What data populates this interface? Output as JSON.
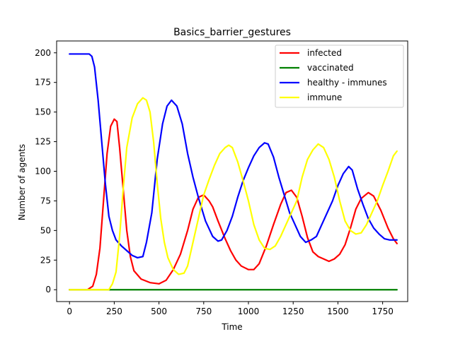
{
  "chart_data": {
    "type": "line",
    "title": "Basics_barrier_gestures",
    "xlabel": "Time",
    "ylabel": "Number of agents",
    "xlim": [
      -72,
      1890
    ],
    "ylim": [
      -10,
      210
    ],
    "xticks": [
      0,
      250,
      500,
      750,
      1000,
      1250,
      1500,
      1750
    ],
    "yticks": [
      0,
      25,
      50,
      75,
      100,
      125,
      150,
      175,
      200
    ],
    "legend_position": "top-right",
    "series": [
      {
        "name": "infected",
        "color": "#ff0000",
        "points": [
          [
            0,
            0
          ],
          [
            100,
            0
          ],
          [
            130,
            3
          ],
          [
            150,
            13
          ],
          [
            170,
            35
          ],
          [
            190,
            75
          ],
          [
            210,
            115
          ],
          [
            230,
            138
          ],
          [
            250,
            144
          ],
          [
            265,
            142
          ],
          [
            280,
            120
          ],
          [
            300,
            85
          ],
          [
            320,
            50
          ],
          [
            340,
            28
          ],
          [
            360,
            16
          ],
          [
            400,
            9
          ],
          [
            450,
            6
          ],
          [
            500,
            5
          ],
          [
            540,
            8
          ],
          [
            580,
            17
          ],
          [
            620,
            30
          ],
          [
            660,
            50
          ],
          [
            690,
            68
          ],
          [
            720,
            78
          ],
          [
            750,
            80
          ],
          [
            780,
            75
          ],
          [
            800,
            70
          ],
          [
            830,
            58
          ],
          [
            870,
            43
          ],
          [
            900,
            33
          ],
          [
            930,
            25
          ],
          [
            960,
            20
          ],
          [
            1000,
            17
          ],
          [
            1030,
            17
          ],
          [
            1060,
            22
          ],
          [
            1100,
            37
          ],
          [
            1140,
            55
          ],
          [
            1180,
            72
          ],
          [
            1210,
            82
          ],
          [
            1240,
            84
          ],
          [
            1270,
            78
          ],
          [
            1300,
            62
          ],
          [
            1330,
            44
          ],
          [
            1360,
            32
          ],
          [
            1390,
            28
          ],
          [
            1420,
            26
          ],
          [
            1450,
            24
          ],
          [
            1480,
            26
          ],
          [
            1510,
            30
          ],
          [
            1540,
            38
          ],
          [
            1570,
            52
          ],
          [
            1600,
            68
          ],
          [
            1630,
            77
          ],
          [
            1670,
            82
          ],
          [
            1700,
            79
          ],
          [
            1740,
            67
          ],
          [
            1780,
            52
          ],
          [
            1810,
            43
          ],
          [
            1830,
            39
          ]
        ]
      },
      {
        "name": "vaccinated",
        "color": "#008000",
        "points": [
          [
            0,
            0
          ],
          [
            1830,
            0
          ]
        ]
      },
      {
        "name": "healthy - immunes",
        "color": "#0000ff",
        "points": [
          [
            0,
            199
          ],
          [
            110,
            199
          ],
          [
            125,
            197
          ],
          [
            140,
            188
          ],
          [
            160,
            160
          ],
          [
            180,
            125
          ],
          [
            200,
            90
          ],
          [
            220,
            62
          ],
          [
            240,
            50
          ],
          [
            260,
            42
          ],
          [
            290,
            37
          ],
          [
            320,
            33
          ],
          [
            350,
            29
          ],
          [
            380,
            27
          ],
          [
            410,
            28
          ],
          [
            430,
            40
          ],
          [
            460,
            65
          ],
          [
            490,
            110
          ],
          [
            520,
            140
          ],
          [
            545,
            155
          ],
          [
            570,
            160
          ],
          [
            600,
            155
          ],
          [
            630,
            140
          ],
          [
            660,
            115
          ],
          [
            690,
            95
          ],
          [
            720,
            78
          ],
          [
            760,
            58
          ],
          [
            800,
            45
          ],
          [
            830,
            41
          ],
          [
            850,
            42
          ],
          [
            880,
            50
          ],
          [
            910,
            62
          ],
          [
            940,
            78
          ],
          [
            970,
            92
          ],
          [
            1000,
            103
          ],
          [
            1030,
            113
          ],
          [
            1060,
            120
          ],
          [
            1090,
            124
          ],
          [
            1110,
            123
          ],
          [
            1140,
            112
          ],
          [
            1170,
            95
          ],
          [
            1200,
            80
          ],
          [
            1230,
            65
          ],
          [
            1260,
            55
          ],
          [
            1290,
            45
          ],
          [
            1320,
            40
          ],
          [
            1350,
            42
          ],
          [
            1380,
            45
          ],
          [
            1410,
            55
          ],
          [
            1440,
            65
          ],
          [
            1470,
            75
          ],
          [
            1500,
            88
          ],
          [
            1530,
            98
          ],
          [
            1560,
            104
          ],
          [
            1580,
            101
          ],
          [
            1610,
            85
          ],
          [
            1640,
            72
          ],
          [
            1670,
            60
          ],
          [
            1700,
            52
          ],
          [
            1730,
            47
          ],
          [
            1760,
            43
          ],
          [
            1790,
            42
          ],
          [
            1830,
            42
          ]
        ]
      },
      {
        "name": "immune",
        "color": "#ffff00",
        "points": [
          [
            0,
            0
          ],
          [
            220,
            0
          ],
          [
            240,
            5
          ],
          [
            260,
            15
          ],
          [
            280,
            45
          ],
          [
            300,
            85
          ],
          [
            320,
            120
          ],
          [
            350,
            145
          ],
          [
            380,
            157
          ],
          [
            410,
            162
          ],
          [
            430,
            160
          ],
          [
            450,
            150
          ],
          [
            470,
            125
          ],
          [
            490,
            90
          ],
          [
            510,
            60
          ],
          [
            530,
            40
          ],
          [
            550,
            27
          ],
          [
            580,
            17
          ],
          [
            610,
            13
          ],
          [
            640,
            14
          ],
          [
            660,
            20
          ],
          [
            690,
            40
          ],
          [
            720,
            60
          ],
          [
            750,
            80
          ],
          [
            780,
            93
          ],
          [
            810,
            105
          ],
          [
            840,
            115
          ],
          [
            870,
            120
          ],
          [
            890,
            122
          ],
          [
            910,
            120
          ],
          [
            940,
            108
          ],
          [
            970,
            92
          ],
          [
            1000,
            75
          ],
          [
            1030,
            55
          ],
          [
            1060,
            42
          ],
          [
            1090,
            35
          ],
          [
            1120,
            34
          ],
          [
            1150,
            37
          ],
          [
            1180,
            45
          ],
          [
            1210,
            55
          ],
          [
            1240,
            65
          ],
          [
            1270,
            75
          ],
          [
            1300,
            95
          ],
          [
            1330,
            110
          ],
          [
            1360,
            118
          ],
          [
            1390,
            123
          ],
          [
            1420,
            120
          ],
          [
            1450,
            110
          ],
          [
            1480,
            95
          ],
          [
            1510,
            75
          ],
          [
            1540,
            58
          ],
          [
            1570,
            50
          ],
          [
            1600,
            47
          ],
          [
            1630,
            48
          ],
          [
            1660,
            55
          ],
          [
            1690,
            65
          ],
          [
            1720,
            75
          ],
          [
            1750,
            88
          ],
          [
            1780,
            100
          ],
          [
            1810,
            113
          ],
          [
            1830,
            117
          ]
        ]
      }
    ]
  }
}
